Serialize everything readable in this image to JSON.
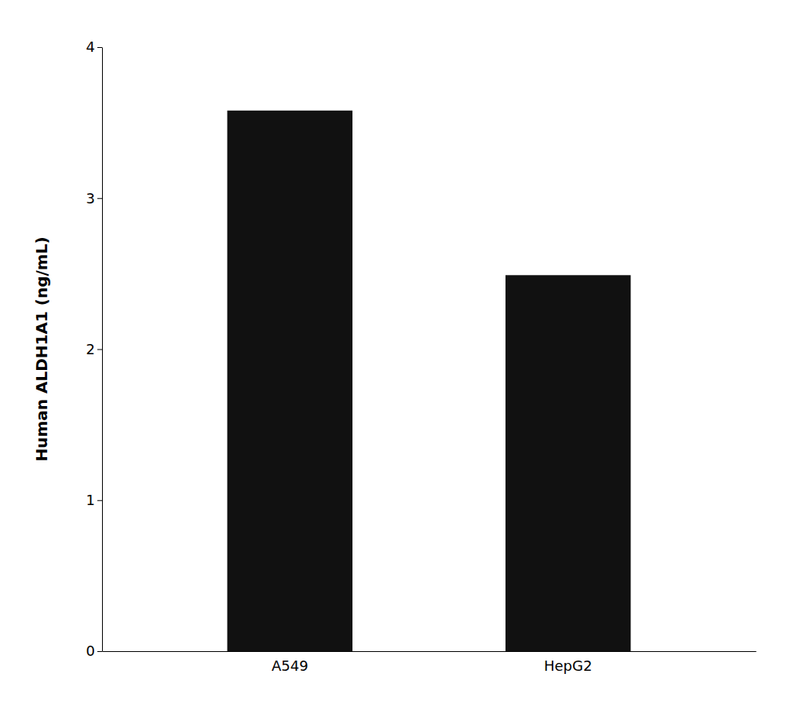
{
  "chart_data": {
    "type": "bar",
    "categories": [
      "A549",
      "HepG2"
    ],
    "values": [
      3.58,
      2.49
    ],
    "color": "#111111",
    "ylabel": "Human ALDH1A1 (ng/mL)",
    "ylim": [
      0,
      4
    ],
    "yticks": [
      0,
      1,
      2,
      3,
      4
    ],
    "grid": false
  }
}
